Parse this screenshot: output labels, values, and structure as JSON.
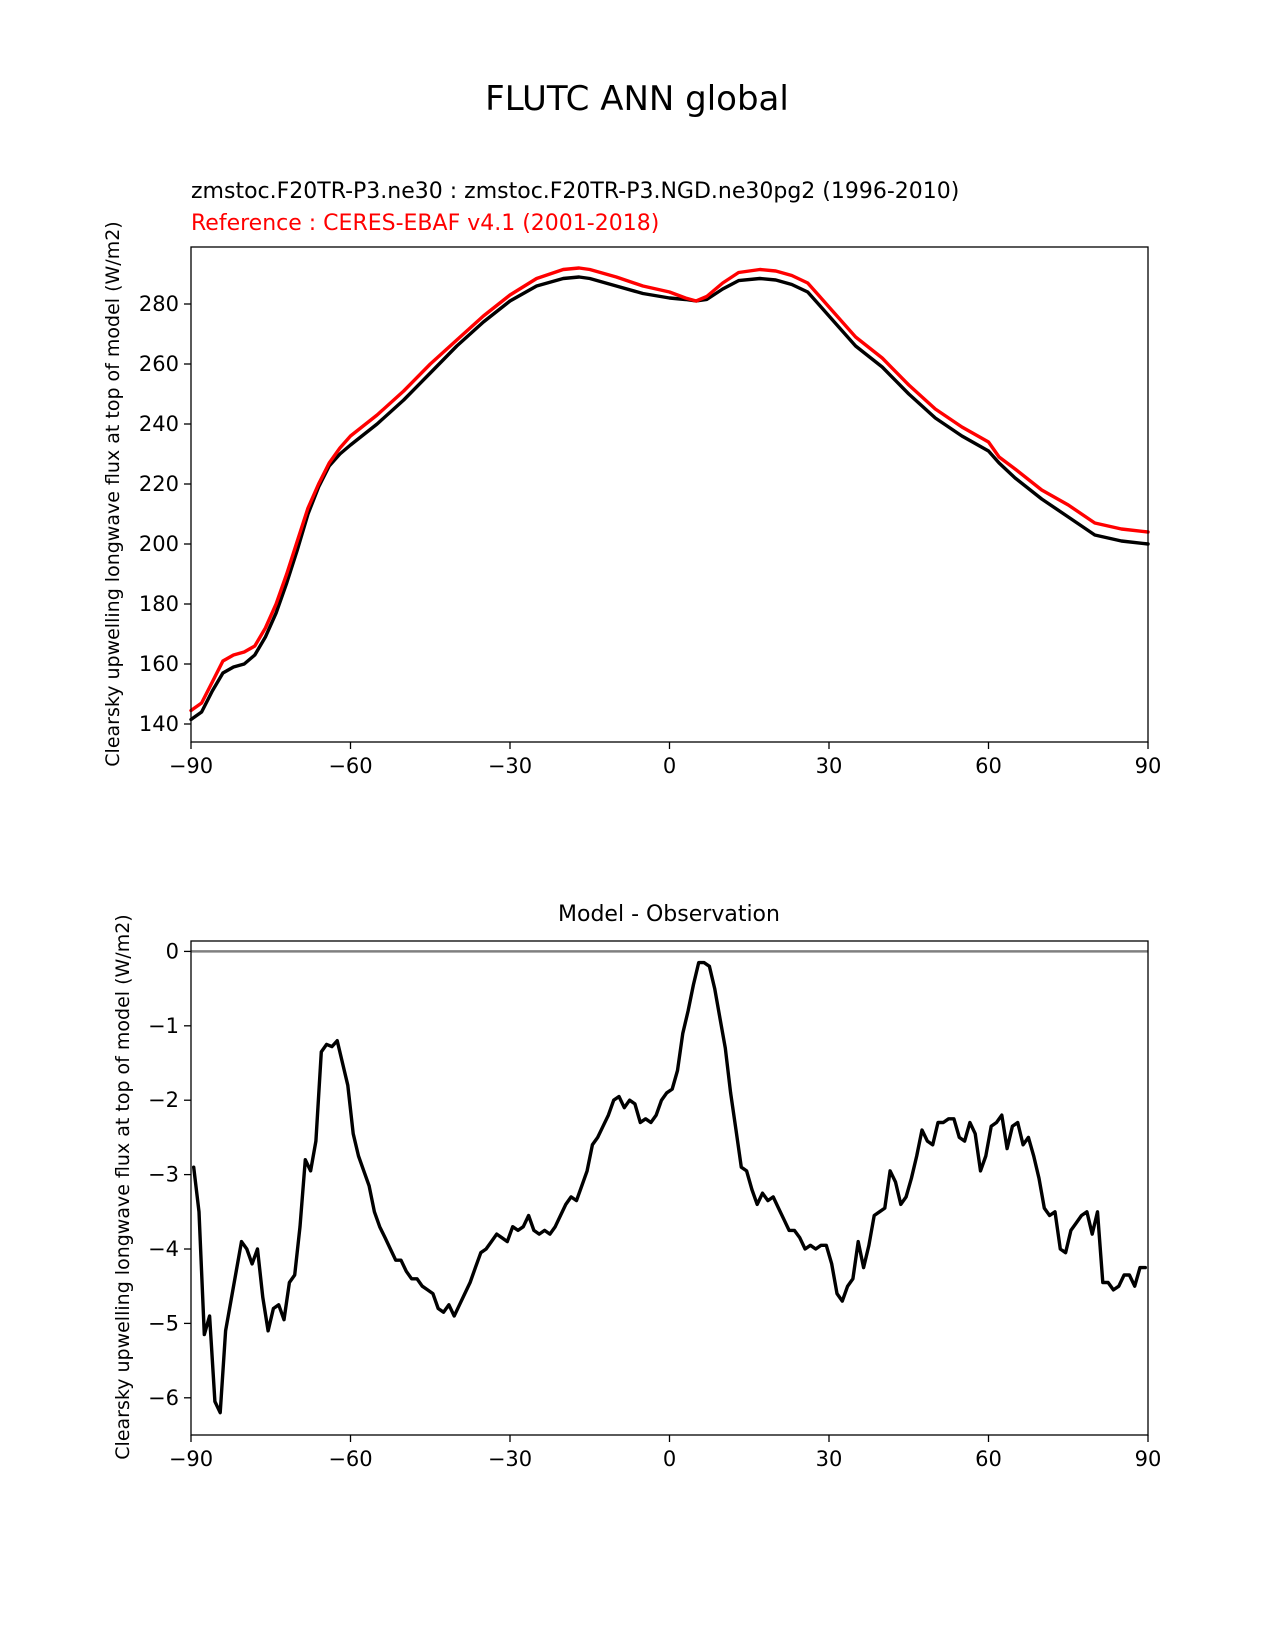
{
  "figure": {
    "title": "FLUTC ANN global"
  },
  "colors": {
    "test": "#000000",
    "reference": "#ff0000",
    "zero_line": "#808080"
  },
  "chart_data": [
    {
      "type": "line",
      "subtitle_test": "zmstoc.F20TR-P3.ne30 : zmstoc.F20TR-P3.NGD.ne30pg2 (1996-2010)",
      "subtitle_ref": "Reference : CERES-EBAF v4.1 (2001-2018)",
      "ylabel": "Clearsky upwelling longwave flux at top of model (W/m2)",
      "xlim": [
        -90,
        90
      ],
      "ylim": [
        134,
        299
      ],
      "xticks": [
        -90,
        -60,
        -30,
        0,
        30,
        60,
        90
      ],
      "xtick_labels": [
        "−90",
        "−60",
        "−30",
        "0",
        "30",
        "60",
        "90"
      ],
      "yticks": [
        140,
        160,
        180,
        200,
        220,
        240,
        260,
        280
      ],
      "ytick_labels": [
        "140",
        "160",
        "180",
        "200",
        "220",
        "240",
        "260",
        "280"
      ],
      "series": [
        {
          "role": "test",
          "color": "#000000",
          "x": [
            -90,
            -88,
            -86,
            -84,
            -82,
            -80,
            -78,
            -76,
            -74,
            -72,
            -70,
            -68,
            -66,
            -64,
            -62,
            -60,
            -55,
            -50,
            -45,
            -40,
            -35,
            -30,
            -25,
            -20,
            -17,
            -15,
            -10,
            -5,
            0,
            3,
            5,
            7,
            10,
            13,
            17,
            20,
            23,
            26,
            28,
            30,
            35,
            40,
            45,
            50,
            55,
            60,
            62,
            65,
            70,
            75,
            80,
            85,
            90
          ],
          "y": [
            141.5,
            144,
            151,
            157,
            159,
            160,
            163,
            169,
            177,
            187,
            198,
            210,
            219,
            226,
            230,
            233,
            240,
            248,
            257,
            266,
            274,
            281,
            286,
            288.5,
            289,
            288.5,
            286,
            283.5,
            282,
            281.5,
            281,
            281.5,
            285,
            287.8,
            288.5,
            288,
            286.5,
            284,
            280,
            276,
            266,
            259,
            250,
            242,
            236,
            231,
            227,
            222,
            215,
            209,
            203,
            201,
            200
          ]
        },
        {
          "role": "reference",
          "color": "#ff0000",
          "x": [
            -90,
            -88,
            -86,
            -84,
            -82,
            -80,
            -78,
            -76,
            -74,
            -72,
            -70,
            -68,
            -66,
            -64,
            -62,
            -60,
            -55,
            -50,
            -45,
            -40,
            -35,
            -30,
            -25,
            -20,
            -17,
            -15,
            -10,
            -5,
            0,
            3,
            5,
            7,
            10,
            13,
            17,
            20,
            23,
            26,
            28,
            30,
            35,
            40,
            45,
            50,
            55,
            60,
            62,
            65,
            70,
            75,
            80,
            85,
            90
          ],
          "y": [
            144.5,
            147,
            154,
            161,
            163,
            164,
            166,
            172,
            180,
            190,
            201,
            212,
            220,
            227,
            232,
            236,
            243,
            251,
            260,
            268,
            276,
            283,
            288.5,
            291.5,
            292,
            291.5,
            289,
            286,
            284,
            282,
            281,
            282.5,
            287,
            290.5,
            291.5,
            291,
            289.5,
            287,
            283,
            279,
            269,
            262,
            253,
            245,
            239,
            234,
            229,
            225,
            218,
            213,
            207,
            205,
            204
          ]
        }
      ]
    },
    {
      "type": "line",
      "title": "Model - Observation",
      "ylabel": "Clearsky upwelling longwave flux at top of model (W/m2)",
      "xlim": [
        -90,
        90
      ],
      "ylim": [
        -6.5,
        0.14
      ],
      "xticks": [
        -90,
        -60,
        -30,
        0,
        30,
        60,
        90
      ],
      "xtick_labels": [
        "−90",
        "−60",
        "−30",
        "0",
        "30",
        "60",
        "90"
      ],
      "yticks": [
        0,
        -1,
        -2,
        -3,
        -4,
        -5,
        -6
      ],
      "ytick_labels": [
        "0",
        "−1",
        "−2",
        "−3",
        "−4",
        "−5",
        "−6"
      ],
      "zero_line": 0,
      "series": [
        {
          "role": "difference",
          "color": "#000000",
          "x": [
            -89.5,
            -88.5,
            -87.5,
            -86.5,
            -85.5,
            -84.5,
            -83.5,
            -82.5,
            -81.5,
            -80.5,
            -79.5,
            -78.5,
            -77.5,
            -76.5,
            -75.5,
            -74.5,
            -73.5,
            -72.5,
            -71.5,
            -70.5,
            -69.5,
            -68.5,
            -67.5,
            -66.5,
            -65.5,
            -64.5,
            -63.5,
            -62.5,
            -61.5,
            -60.5,
            -59.5,
            -58.5,
            -57.5,
            -56.5,
            -55.5,
            -54.5,
            -53.5,
            -52.5,
            -51.5,
            -50.5,
            -49.5,
            -48.5,
            -47.5,
            -46.5,
            -45.5,
            -44.5,
            -43.5,
            -42.5,
            -41.5,
            -40.5,
            -39.5,
            -38.5,
            -37.5,
            -36.5,
            -35.5,
            -34.5,
            -33.5,
            -32.5,
            -31.5,
            -30.5,
            -29.5,
            -28.5,
            -27.5,
            -26.5,
            -25.5,
            -24.5,
            -23.5,
            -22.5,
            -21.5,
            -20.5,
            -19.5,
            -18.5,
            -17.5,
            -16.5,
            -15.5,
            -14.5,
            -13.5,
            -12.5,
            -11.5,
            -10.5,
            -9.5,
            -8.5,
            -7.5,
            -6.5,
            -5.5,
            -4.5,
            -3.5,
            -2.5,
            -1.5,
            -0.5,
            0.5,
            1.5,
            2.5,
            3.5,
            4.5,
            5.5,
            6.5,
            7.5,
            8.5,
            9.5,
            10.5,
            11.5,
            12.5,
            13.5,
            14.5,
            15.5,
            16.5,
            17.5,
            18.5,
            19.5,
            20.5,
            21.5,
            22.5,
            23.5,
            24.5,
            25.5,
            26.5,
            27.5,
            28.5,
            29.5,
            30.5,
            31.5,
            32.5,
            33.5,
            34.5,
            35.5,
            36.5,
            37.5,
            38.5,
            39.5,
            40.5,
            41.5,
            42.5,
            43.5,
            44.5,
            45.5,
            46.5,
            47.5,
            48.5,
            49.5,
            50.5,
            51.5,
            52.5,
            53.5,
            54.5,
            55.5,
            56.5,
            57.5,
            58.5,
            59.5,
            60.5,
            61.5,
            62.5,
            63.5,
            64.5,
            65.5,
            66.5,
            67.5,
            68.5,
            69.5,
            70.5,
            71.5,
            72.5,
            73.5,
            74.5,
            75.5,
            76.5,
            77.5,
            78.5,
            79.5,
            80.5,
            81.5,
            82.5,
            83.5,
            84.5,
            85.5,
            86.5,
            87.5,
            88.5,
            89.5
          ],
          "y": [
            -2.9,
            -3.5,
            -5.15,
            -4.9,
            -6.05,
            -6.2,
            -5.1,
            -4.7,
            -4.3,
            -3.9,
            -4.0,
            -4.2,
            -4.0,
            -4.65,
            -5.1,
            -4.8,
            -4.75,
            -4.95,
            -4.45,
            -4.35,
            -3.7,
            -2.8,
            -2.95,
            -2.55,
            -1.35,
            -1.25,
            -1.28,
            -1.2,
            -1.5,
            -1.8,
            -2.45,
            -2.75,
            -2.95,
            -3.15,
            -3.5,
            -3.7,
            -3.85,
            -4.0,
            -4.15,
            -4.15,
            -4.3,
            -4.4,
            -4.4,
            -4.5,
            -4.55,
            -4.6,
            -4.8,
            -4.85,
            -4.75,
            -4.9,
            -4.75,
            -4.6,
            -4.45,
            -4.25,
            -4.05,
            -4.0,
            -3.9,
            -3.8,
            -3.85,
            -3.9,
            -3.7,
            -3.75,
            -3.7,
            -3.55,
            -3.75,
            -3.8,
            -3.75,
            -3.8,
            -3.7,
            -3.55,
            -3.4,
            -3.3,
            -3.35,
            -3.15,
            -2.95,
            -2.6,
            -2.5,
            -2.35,
            -2.2,
            -2.0,
            -1.95,
            -2.1,
            -2.0,
            -2.05,
            -2.3,
            -2.25,
            -2.3,
            -2.2,
            -2.0,
            -1.9,
            -1.85,
            -1.6,
            -1.1,
            -0.8,
            -0.45,
            -0.15,
            -0.15,
            -0.2,
            -0.5,
            -0.9,
            -1.3,
            -1.9,
            -2.4,
            -2.9,
            -2.95,
            -3.2,
            -3.4,
            -3.25,
            -3.35,
            -3.3,
            -3.45,
            -3.6,
            -3.75,
            -3.75,
            -3.85,
            -4.0,
            -3.95,
            -4.0,
            -3.95,
            -3.95,
            -4.2,
            -4.6,
            -4.7,
            -4.5,
            -4.4,
            -3.9,
            -4.25,
            -3.95,
            -3.55,
            -3.5,
            -3.45,
            -2.95,
            -3.1,
            -3.4,
            -3.3,
            -3.05,
            -2.75,
            -2.4,
            -2.55,
            -2.6,
            -2.3,
            -2.3,
            -2.25,
            -2.25,
            -2.5,
            -2.55,
            -2.3,
            -2.45,
            -2.95,
            -2.75,
            -2.35,
            -2.3,
            -2.2,
            -2.65,
            -2.35,
            -2.3,
            -2.6,
            -2.5,
            -2.75,
            -3.05,
            -3.45,
            -3.55,
            -3.5,
            -4.0,
            -4.05,
            -3.75,
            -3.65,
            -3.55,
            -3.5,
            -3.8,
            -3.5,
            -4.45,
            -4.45,
            -4.55,
            -4.5,
            -4.35,
            -4.35,
            -4.5,
            -4.25,
            -4.25
          ]
        }
      ]
    }
  ]
}
